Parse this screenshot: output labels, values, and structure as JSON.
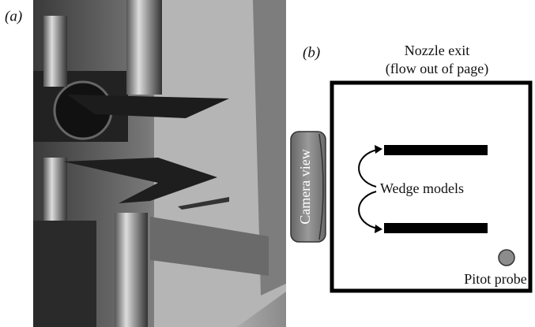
{
  "panel_a": {
    "label": "(a)"
  },
  "panel_b": {
    "label": "(b)",
    "title": "Nozzle exit",
    "subtitle": "(flow out of page)",
    "camera": "Camera view",
    "wedges": "Wedge models",
    "probe": "Pitot probe"
  }
}
